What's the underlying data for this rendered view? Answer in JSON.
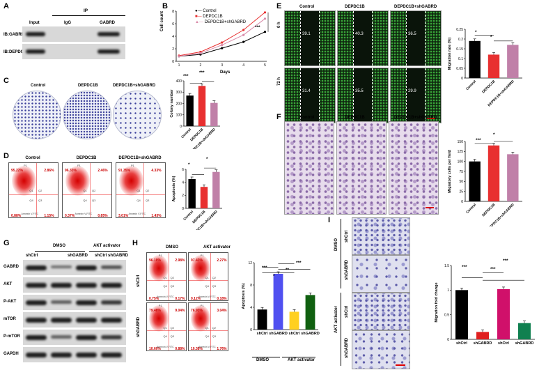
{
  "panelA": {
    "label": "A",
    "ip_header": "IP",
    "cols": [
      "Input",
      "IgG",
      "GABRD"
    ],
    "rows": [
      "IB:GABRD",
      "IB:DEPDC1B"
    ]
  },
  "panelB": {
    "label": "B",
    "ylabel": "Cell count",
    "xlabel": "Days",
    "legend": [
      "Control",
      "DEPDC1B",
      "DEPDC1B+shGABRD"
    ],
    "sig": "***"
  },
  "panelC": {
    "label": "C",
    "dishes": [
      "Control",
      "DEPDC1B",
      "DEPDC1B+shGABRD"
    ],
    "sig": [
      "***",
      "***"
    ]
  },
  "panelD": {
    "label": "D",
    "plots": [
      {
        "title": "Control",
        "ul": "95.22%",
        "ur": "2.86%",
        "ll": "0.88%",
        "lr": "1.15%"
      },
      {
        "title": "DEPDC1B",
        "ul": "96.33%",
        "ur": "2.46%",
        "ll": "0.37%",
        "lr": "0.85%"
      },
      {
        "title": "DEPDC1B+shGABRD",
        "ul": "91.35%",
        "ur": "4.33%",
        "ll": "3.01%",
        "lr": "1.43%"
      }
    ],
    "sig": [
      "*",
      "*"
    ]
  },
  "panelE": {
    "label": "E",
    "cols": [
      "Control",
      "DEPDC1B",
      "DEPDC1B+shGABRD"
    ],
    "rows": [
      "0 h",
      "72 h"
    ],
    "values": [
      [
        "39.1",
        "40.3",
        "36.5"
      ],
      [
        "31.4",
        "35.5",
        "29.9"
      ]
    ],
    "sig": [
      "*",
      "*"
    ]
  },
  "panelF": {
    "label": "F",
    "cols": [
      "Control",
      "DEPDC1B",
      "DEPDC1B+shGABRD"
    ],
    "sig": [
      "***",
      "*"
    ]
  },
  "panelG": {
    "label": "G",
    "groups": [
      "DMSO",
      "AKT activator"
    ],
    "lanes": [
      "shCtrl",
      "shGABRD",
      "shCtrl",
      "shGABRD"
    ],
    "rows": [
      "GABRD",
      "AKT",
      "P-AKT",
      "mTOR",
      "P-mTOR",
      "GAPDH"
    ]
  },
  "panelH": {
    "label": "H",
    "groups": [
      "DMSO",
      "AKT activator"
    ],
    "rows": [
      "shCtrl",
      "shGABRD"
    ],
    "plots": [
      {
        "ul": "96.10%",
        "ur": "2.98%",
        "ll": "0.75%",
        "lr": "0.17%"
      },
      {
        "ul": "97.43%",
        "ur": "2.27%",
        "ll": "0.12%",
        "lr": "0.18%"
      },
      {
        "ul": "79.48%",
        "ur": "9.04%",
        "ll": "10.60%",
        "lr": "0.88%"
      },
      {
        "ul": "76.93%",
        "ur": "3.04%",
        "ll": "10.38%",
        "lr": "1.76%"
      }
    ],
    "sig": [
      "***",
      "**",
      "***",
      "*"
    ]
  },
  "panelI": {
    "label": "I",
    "groups": [
      "DMSO",
      "AKT activator"
    ],
    "rows": [
      "shCtrl",
      "shGABRD",
      "shCtrl",
      "shGABRD"
    ],
    "sig": [
      "***",
      "***",
      "***"
    ]
  },
  "common": {
    "gate_label": "P1",
    "q1": "Q1",
    "q2": "Q2",
    "q3": "Q3",
    "q4": "Q4",
    "axis_text": "Annexin V-FITC"
  },
  "chart_data": [
    {
      "type": "line",
      "x": [
        1,
        2,
        3,
        4,
        5
      ],
      "xlabel": "Days",
      "ylabel": "Cell count",
      "ylim": [
        0,
        8
      ],
      "series": [
        {
          "name": "Control",
          "values": [
            0.8,
            1.1,
            2.1,
            3.1,
            4.7
          ],
          "color": "#000000"
        },
        {
          "name": "DEPDC1B",
          "values": [
            0.9,
            1.5,
            3.0,
            5.0,
            7.8
          ],
          "color": "#e83030"
        },
        {
          "name": "DEPDC1B+shGABRD",
          "values": [
            0.8,
            1.3,
            2.6,
            4.2,
            6.8
          ],
          "color": "#d88aa8"
        }
      ]
    },
    {
      "type": "bar",
      "categories": [
        "Control",
        "DEPDC1B",
        "DEPDC1B+shGABRD"
      ],
      "values": [
        270,
        355,
        205
      ],
      "ylabel": "Colony number",
      "ylim": [
        0,
        400
      ],
      "yticks": [
        0,
        100,
        200,
        300,
        400
      ],
      "colors": [
        "#000000",
        "#e83030",
        "#c080a8"
      ]
    },
    {
      "type": "bar",
      "categories": [
        "Control",
        "DEPDC1B",
        "DEPDC1B+shGABRD"
      ],
      "values": [
        4.5,
        3.3,
        5.6
      ],
      "ylabel": "Apoptosis (%)",
      "ylim": [
        0,
        6
      ],
      "yticks": [
        0,
        2,
        4,
        6
      ],
      "colors": [
        "#000000",
        "#e83030",
        "#c080a8"
      ]
    },
    {
      "type": "bar",
      "categories": [
        "Control",
        "DEPDC1B",
        "DEPDC1B+shGABRD"
      ],
      "values": [
        0.19,
        0.12,
        0.17
      ],
      "ylabel": "Migration rate (%)",
      "ylim": [
        0,
        0.25
      ],
      "yticks": [
        0,
        0.05,
        0.1,
        0.15,
        0.2,
        0.25
      ],
      "colors": [
        "#000000",
        "#e83030",
        "#c080a8"
      ]
    },
    {
      "type": "bar",
      "categories": [
        "Control",
        "DEPDC1B",
        "DEPDC1B+shGABRD"
      ],
      "values": [
        100,
        140,
        118
      ],
      "ylabel": "Migratory cells per field",
      "ylim": [
        0,
        150
      ],
      "yticks": [
        0,
        25,
        50,
        75,
        100,
        125,
        150
      ],
      "colors": [
        "#000000",
        "#e83030",
        "#c080a8"
      ]
    },
    {
      "type": "bar",
      "categories": [
        "shCtrl",
        "shGABRD",
        "shCtrl",
        "shGABRD"
      ],
      "groups": [
        "DMSO",
        "AKT activator"
      ],
      "values": [
        3.6,
        10.0,
        3.2,
        6.2
      ],
      "ylabel": "Apoptosis (%)",
      "ylim": [
        0,
        12
      ],
      "yticks": [
        0,
        4,
        8,
        12
      ],
      "colors": [
        "#000000",
        "#5050f0",
        "#ffd020",
        "#106010"
      ]
    },
    {
      "type": "bar",
      "categories": [
        "shCtrl",
        "shGABRD",
        "shCtrl",
        "shGABRD"
      ],
      "values": [
        1.0,
        0.15,
        1.02,
        0.33
      ],
      "ylabel": "Migration fold change",
      "ylim": [
        0,
        1.5
      ],
      "yticks": [
        0,
        0.5,
        1.0,
        1.5
      ],
      "colors": [
        "#000000",
        "#e02020",
        "#d0106a",
        "#108050"
      ]
    }
  ]
}
